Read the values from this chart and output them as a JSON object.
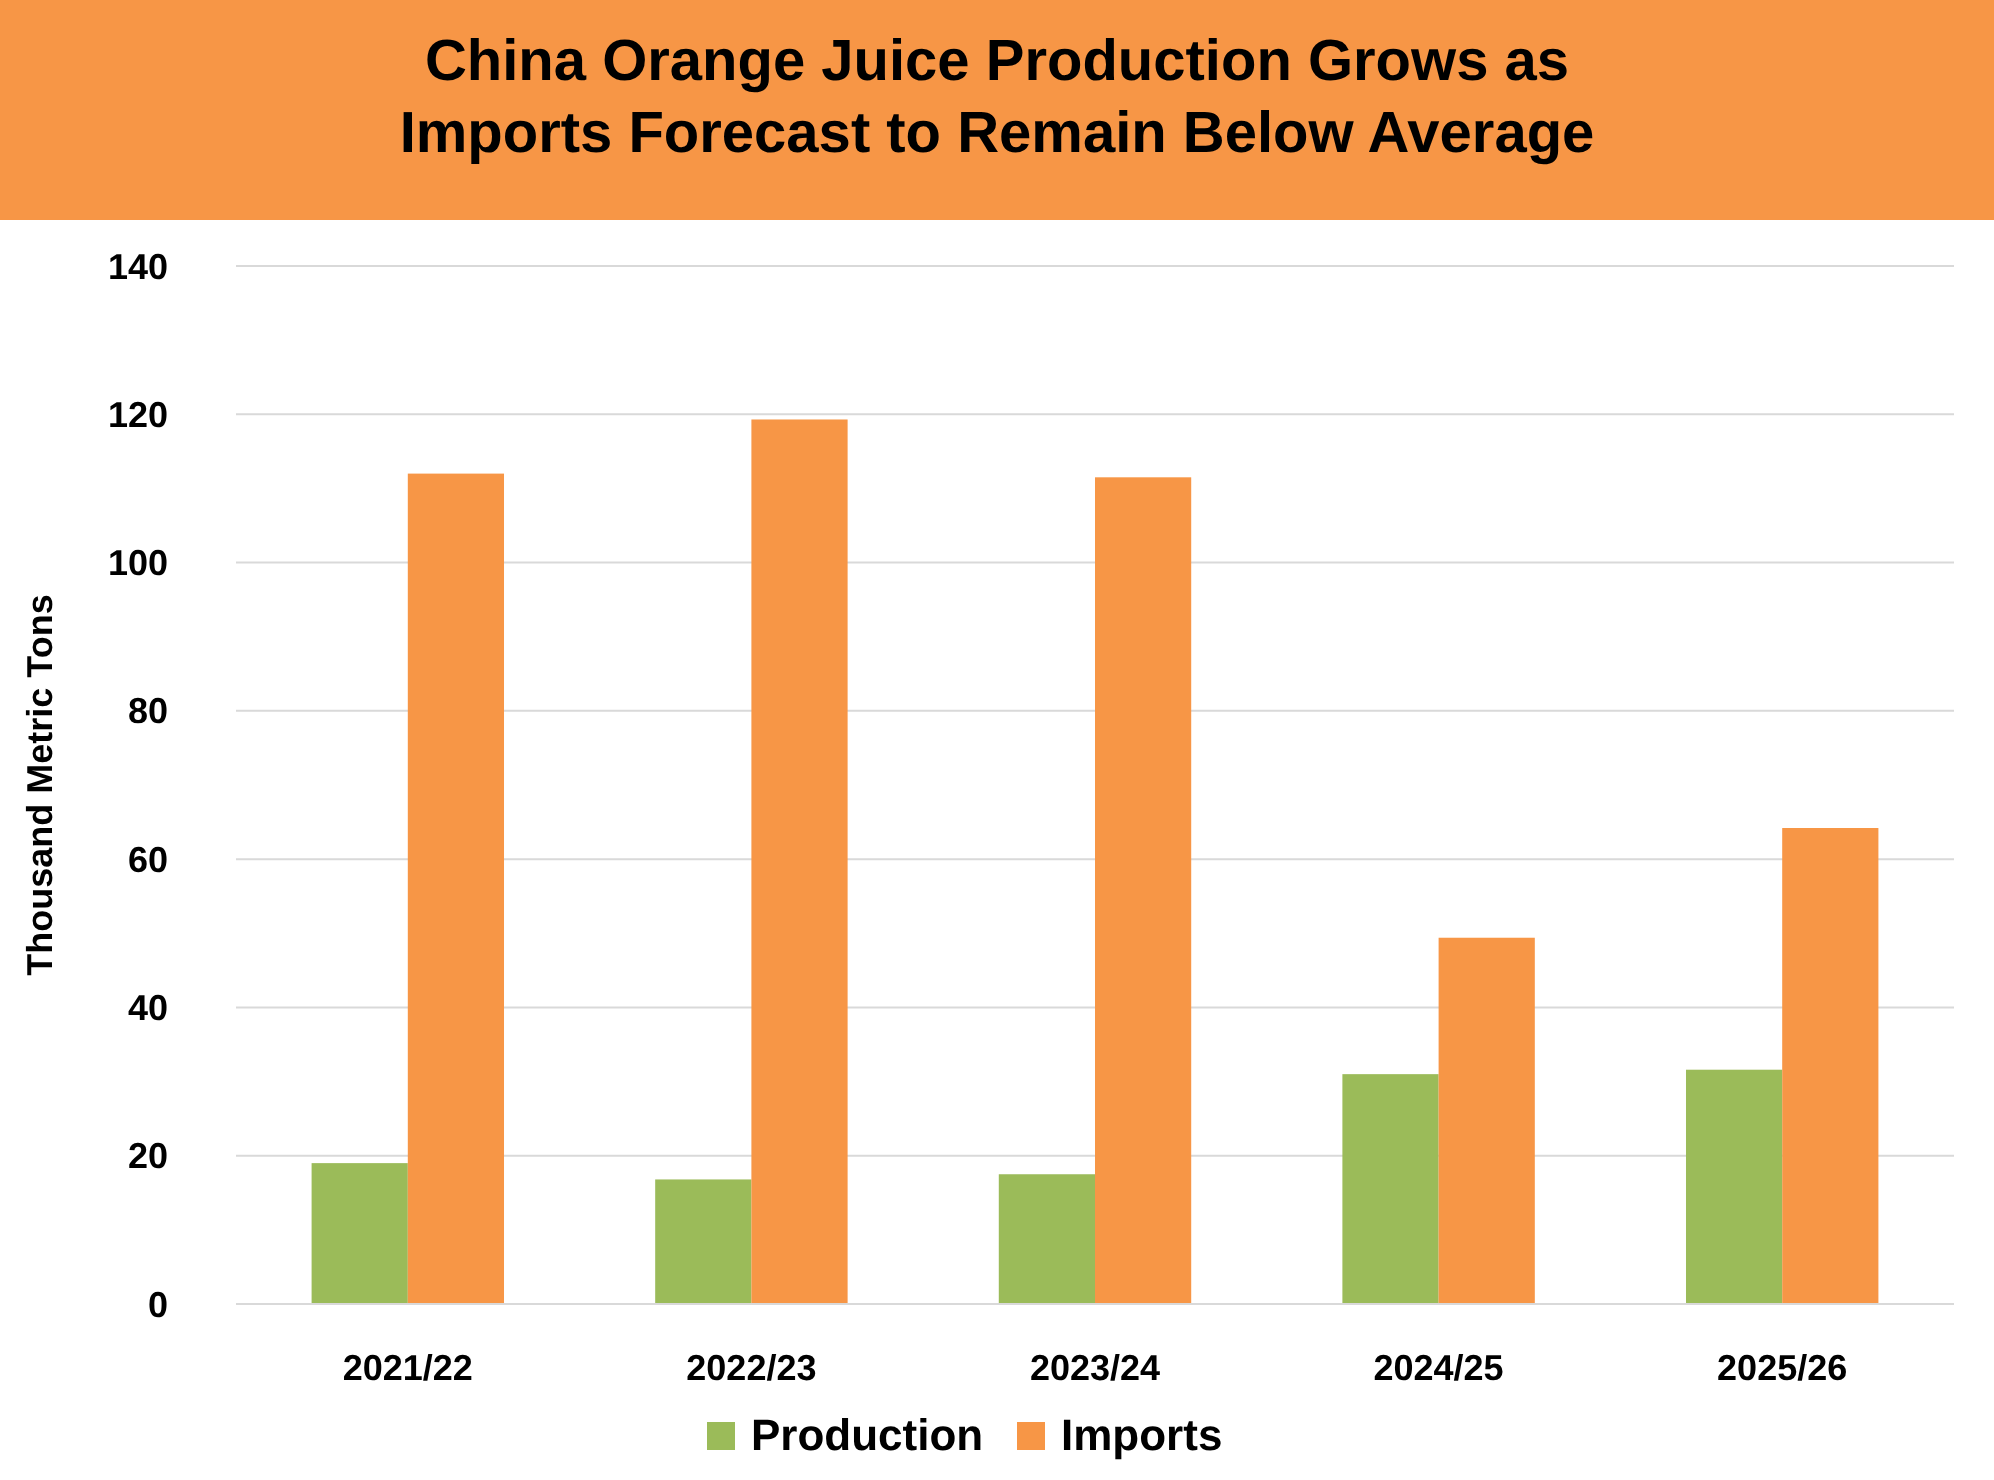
{
  "chart_data": {
    "type": "bar",
    "title": "China Orange Juice Production Grows as Imports Forecast to Remain Below Average",
    "ylabel": "Thousand Metric Tons",
    "categories": [
      "2021/22",
      "2022/23",
      "2023/24",
      "2024/25",
      "2025/26"
    ],
    "series": [
      {
        "name": "Production",
        "color": "#9bbb59",
        "values": [
          19,
          16.8,
          17.5,
          31,
          31.6
        ]
      },
      {
        "name": "Imports",
        "color": "#f79646",
        "values": [
          112,
          119.3,
          111.5,
          49.4,
          64.2
        ]
      }
    ],
    "ylim": [
      0,
      140
    ],
    "yticks": [
      0,
      20,
      40,
      60,
      80,
      100,
      120,
      140
    ],
    "grid": "y",
    "legend": "bottom"
  }
}
